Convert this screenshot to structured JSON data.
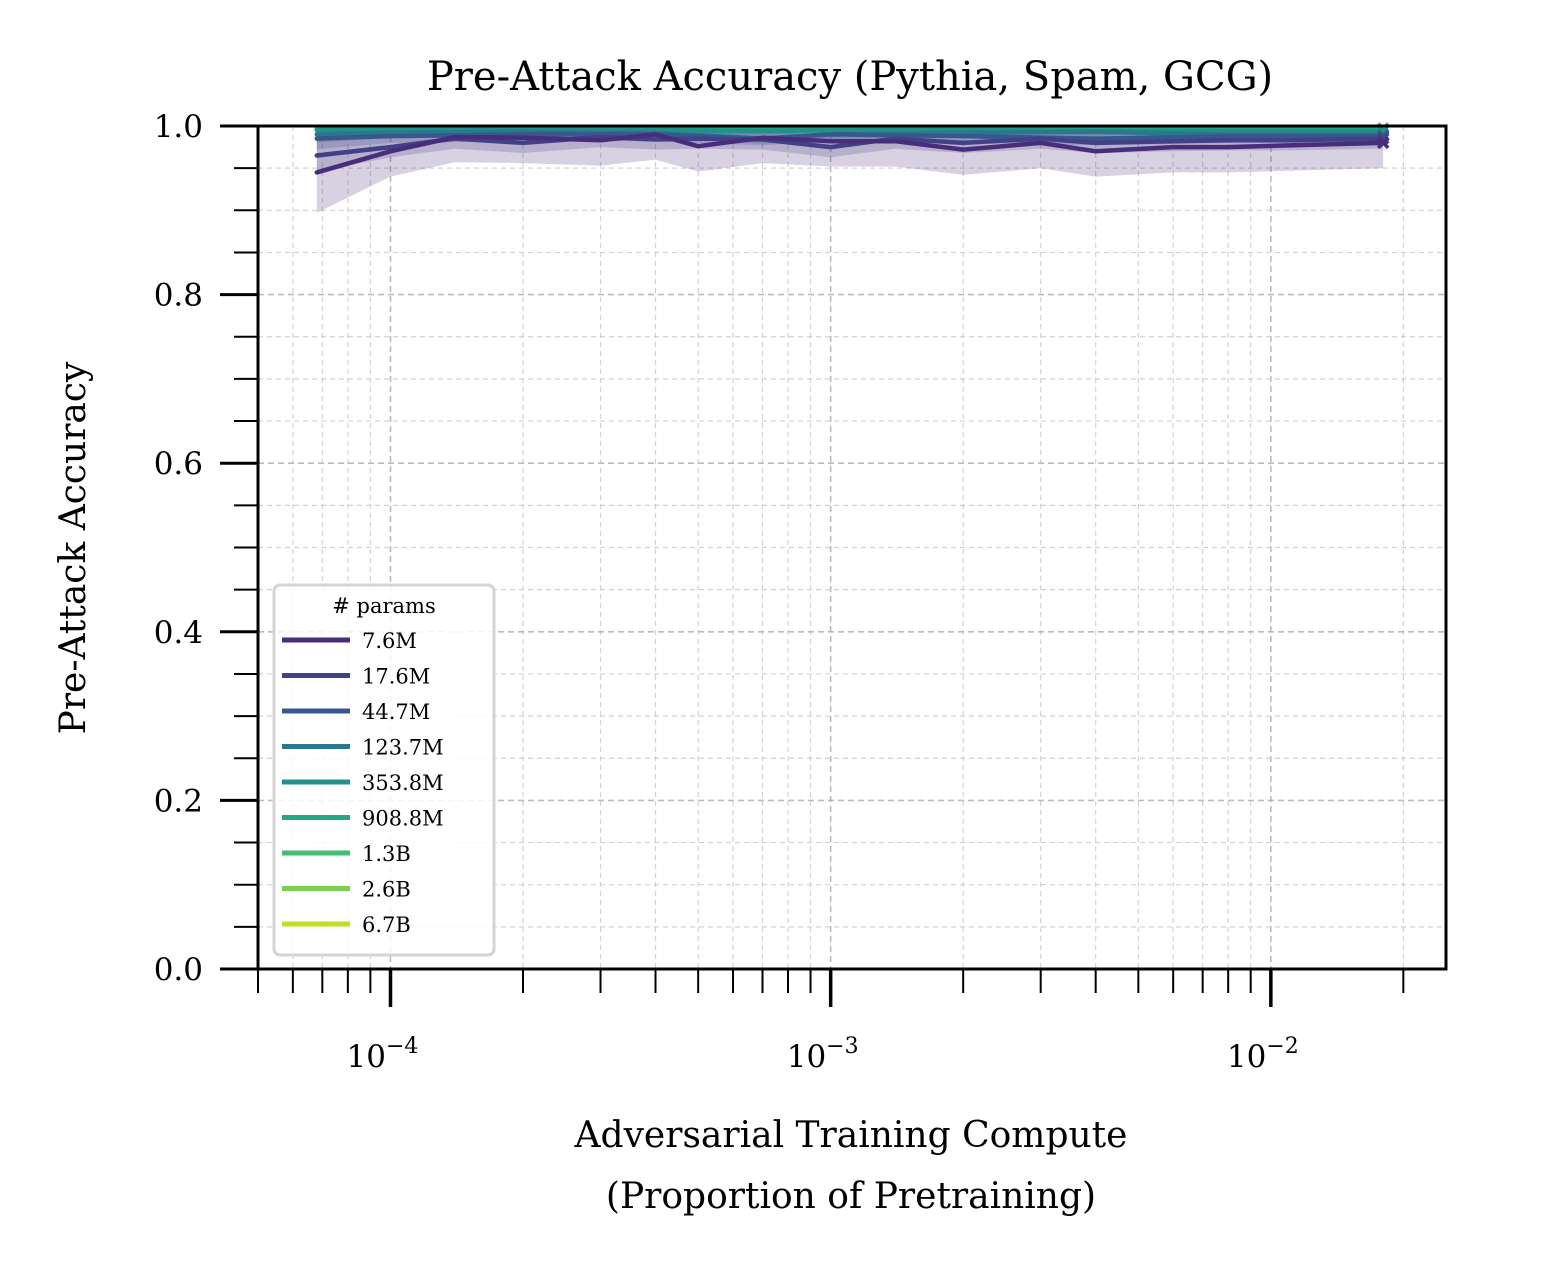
{
  "chart_data": {
    "type": "line",
    "title": "Pre-Attack Accuracy (Pythia, Spam, GCG)",
    "xlabel_line1": "Adversarial Training Compute",
    "xlabel_line2": "(Proportion of Pretraining)",
    "ylabel": "Pre-Attack Accuracy",
    "xscale": "log",
    "xlim": [
      5e-05,
      0.025
    ],
    "ylim": [
      0.0,
      1.0
    ],
    "grid": true,
    "x_tick_labels": [
      {
        "value": 0.0001,
        "base": "10",
        "exp": "−4"
      },
      {
        "value": 0.001,
        "base": "10",
        "exp": "−3"
      },
      {
        "value": 0.01,
        "base": "10",
        "exp": "−2"
      }
    ],
    "y_ticks": [
      0.0,
      0.2,
      0.4,
      0.6,
      0.8,
      1.0
    ],
    "y_tick_labels": [
      "0.0",
      "0.2",
      "0.4",
      "0.6",
      "0.8",
      "1.0"
    ],
    "legend": {
      "title": "# params",
      "placement": "lower-left"
    },
    "series": [
      {
        "name": "7.6M",
        "color": "#472d7b",
        "x": [
          6.8e-05,
          0.0001,
          0.00014,
          0.0002,
          0.0003,
          0.0004,
          0.0005,
          0.0007,
          0.001,
          0.0014,
          0.002,
          0.003,
          0.004,
          0.006,
          0.008,
          0.011,
          0.018
        ],
        "y": [
          0.945,
          0.97,
          0.987,
          0.986,
          0.983,
          0.99,
          0.976,
          0.986,
          0.982,
          0.982,
          0.972,
          0.98,
          0.97,
          0.975,
          0.975,
          0.977,
          0.98
        ],
        "band": 0.03
      },
      {
        "name": "17.6M",
        "color": "#424086",
        "x": [
          6.8e-05,
          0.0001,
          0.00014,
          0.0002,
          0.0003,
          0.0004,
          0.0005,
          0.0007,
          0.001,
          0.0014,
          0.002,
          0.003,
          0.004,
          0.006,
          0.008,
          0.011,
          0.018
        ],
        "y": [
          0.965,
          0.975,
          0.985,
          0.98,
          0.987,
          0.984,
          0.985,
          0.984,
          0.975,
          0.985,
          0.98,
          0.985,
          0.98,
          0.982,
          0.983,
          0.983,
          0.985
        ],
        "band": 0.012
      },
      {
        "name": "44.7M",
        "color": "#38588c",
        "x": [
          6.8e-05,
          0.0001,
          0.0002,
          0.0004,
          0.0007,
          0.001,
          0.002,
          0.004,
          0.008,
          0.018
        ],
        "y": [
          0.985,
          0.988,
          0.99,
          0.99,
          0.985,
          0.99,
          0.988,
          0.985,
          0.988,
          0.988
        ],
        "band": 0.008
      },
      {
        "name": "123.7M",
        "color": "#2a788e",
        "x": [
          6.8e-05,
          0.0001,
          0.0002,
          0.0004,
          0.0007,
          0.001,
          0.002,
          0.004,
          0.008,
          0.018
        ],
        "y": [
          0.99,
          0.992,
          0.993,
          0.992,
          0.985,
          0.99,
          0.992,
          0.993,
          0.99,
          0.99
        ],
        "band": 0.006
      },
      {
        "name": "353.8M",
        "color": "#21918c",
        "x": [
          6.8e-05,
          0.0001,
          0.0002,
          0.0004,
          0.0007,
          0.001,
          0.002,
          0.004,
          0.008,
          0.018
        ],
        "y": [
          0.995,
          0.995,
          0.996,
          0.995,
          0.994,
          0.995,
          0.995,
          0.994,
          0.994,
          0.994
        ],
        "band": 0.004
      },
      {
        "name": "908.8M",
        "color": "#22a884",
        "x": [
          6.8e-05,
          0.0001,
          0.0002,
          0.0004,
          0.0007,
          0.001,
          0.002,
          0.004,
          0.008,
          0.018
        ],
        "y": [
          0.996,
          0.997,
          0.997,
          0.997,
          0.996,
          0.997,
          0.996,
          0.996,
          0.996,
          0.996
        ],
        "band": 0.003
      },
      {
        "name": "1.3B",
        "color": "#44bf70",
        "x": [
          6.8e-05,
          0.0001,
          0.0002,
          0.0004,
          0.0007,
          0.001,
          0.002,
          0.004,
          0.008,
          0.018
        ],
        "y": [
          0.997,
          0.997,
          0.998,
          0.997,
          0.997,
          0.997,
          0.997,
          0.997,
          0.997,
          0.997
        ],
        "band": 0.003
      },
      {
        "name": "2.6B",
        "color": "#7ad151",
        "x": [
          6.8e-05,
          0.0001,
          0.0002,
          0.0004,
          0.0007,
          0.001,
          0.002,
          0.004,
          0.008,
          0.018
        ],
        "y": [
          0.998,
          0.998,
          0.998,
          0.998,
          0.998,
          0.998,
          0.997,
          0.997,
          0.997,
          0.997
        ],
        "band": 0.002
      },
      {
        "name": "6.7B",
        "color": "#bddf26",
        "x": [
          6.8e-05,
          0.0001,
          0.0002,
          0.0004,
          0.0007,
          0.001,
          0.002,
          0.004,
          0.008,
          0.018
        ],
        "y": [
          0.998,
          0.998,
          0.998,
          0.998,
          0.998,
          0.998,
          0.998,
          0.996,
          0.997,
          0.997
        ],
        "band": 0.002
      }
    ]
  }
}
